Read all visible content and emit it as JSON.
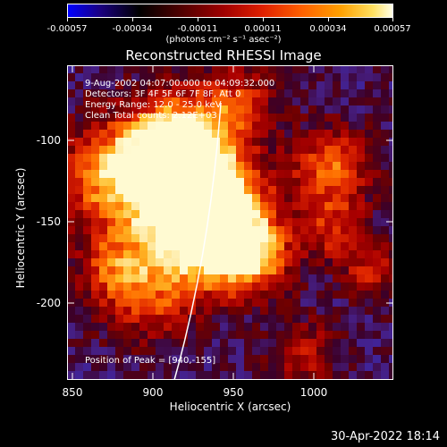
{
  "colorbar": {
    "ticks": [
      "-0.00057",
      "-0.00034",
      "-0.00011",
      "0.00011",
      "0.00034",
      "0.00057"
    ],
    "units": "(photons cm⁻² s⁻¹ asec⁻²)"
  },
  "title": "Reconstructed RHESSI Image",
  "annotations": {
    "time_range": "9-Aug-2002 04:07:00.000 to 04:09:32.000",
    "detectors": "Detectors: 3F 4F 5F 6F 7F 8F, Att 0",
    "energy": "Energy Range: 12.0 - 25.0 keV",
    "method": "Clean     Total counts: 2.12E+03",
    "peak": "Position of Peak = [940,-155]"
  },
  "axes": {
    "xlabel": "Heliocentric X (arcsec)",
    "ylabel": "Heliocentric Y (arcsec)",
    "xticks": [
      "850",
      "900",
      "950",
      "1000"
    ],
    "yticks": [
      "-100",
      "-150",
      "-200"
    ],
    "xlim": [
      848,
      1040
    ],
    "ylim": [
      -246,
      -62
    ]
  },
  "timestamp": "30-Apr-2022 18:14"
}
